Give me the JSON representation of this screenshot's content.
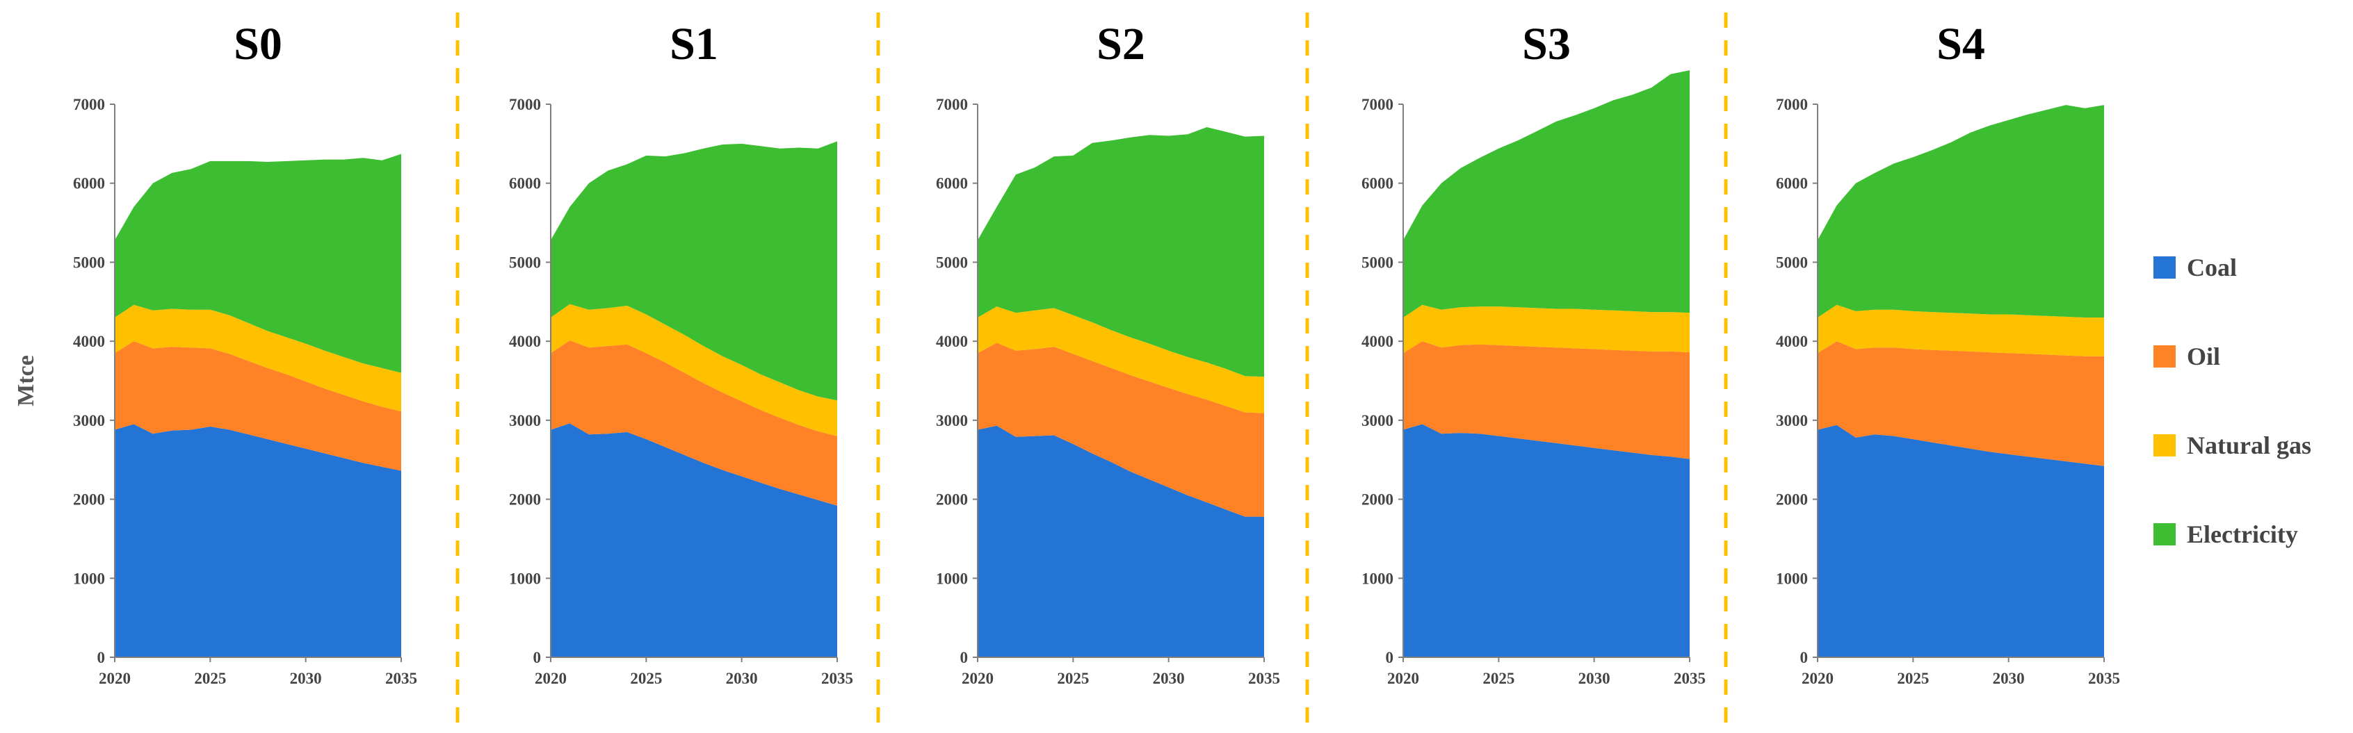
{
  "ylabel": "Mtce",
  "legend": [
    {
      "name": "Coal",
      "color": "#2374D4"
    },
    {
      "name": "Oil",
      "color": "#FF8227"
    },
    {
      "name": "Natural gas",
      "color": "#FFC000"
    },
    {
      "name": "Electricity",
      "color": "#3DBE32"
    }
  ],
  "chart_data": [
    {
      "type": "area",
      "stacked": true,
      "title": "S0",
      "x": [
        2020,
        2021,
        2022,
        2023,
        2024,
        2025,
        2026,
        2027,
        2028,
        2029,
        2030,
        2031,
        2032,
        2033,
        2034,
        2035
      ],
      "xticks": [
        2020,
        2025,
        2030,
        2035
      ],
      "yticks": [
        0,
        1000,
        2000,
        3000,
        4000,
        5000,
        6000,
        7000
      ],
      "ylim": [
        0,
        7000
      ],
      "xlim": [
        2020,
        2035
      ],
      "series": [
        {
          "name": "Coal",
          "values": [
            2880,
            2950,
            2830,
            2870,
            2880,
            2920,
            2880,
            2820,
            2760,
            2700,
            2640,
            2580,
            2520,
            2460,
            2410,
            2360
          ]
        },
        {
          "name": "Oil",
          "values": [
            970,
            1050,
            1080,
            1060,
            1040,
            990,
            960,
            930,
            900,
            880,
            850,
            820,
            800,
            780,
            760,
            750
          ]
        },
        {
          "name": "Natural gas",
          "values": [
            450,
            460,
            480,
            480,
            480,
            490,
            490,
            480,
            470,
            470,
            480,
            480,
            480,
            480,
            490,
            490
          ]
        },
        {
          "name": "Electricity",
          "values": [
            980,
            1240,
            1610,
            1720,
            1780,
            1880,
            1950,
            2050,
            2140,
            2230,
            2320,
            2420,
            2500,
            2600,
            2630,
            2770
          ]
        }
      ]
    },
    {
      "type": "area",
      "stacked": true,
      "title": "S1",
      "x": [
        2020,
        2021,
        2022,
        2023,
        2024,
        2025,
        2026,
        2027,
        2028,
        2029,
        2030,
        2031,
        2032,
        2033,
        2034,
        2035
      ],
      "xticks": [
        2020,
        2025,
        2030,
        2035
      ],
      "yticks": [
        0,
        1000,
        2000,
        3000,
        4000,
        5000,
        6000,
        7000
      ],
      "ylim": [
        0,
        7000
      ],
      "xlim": [
        2020,
        2035
      ],
      "series": [
        {
          "name": "Coal",
          "values": [
            2880,
            2960,
            2820,
            2830,
            2850,
            2760,
            2660,
            2560,
            2460,
            2370,
            2290,
            2210,
            2130,
            2060,
            1990,
            1920
          ]
        },
        {
          "name": "Oil",
          "values": [
            970,
            1050,
            1100,
            1110,
            1110,
            1090,
            1070,
            1040,
            1010,
            980,
            950,
            920,
            900,
            880,
            870,
            880
          ]
        },
        {
          "name": "Natural gas",
          "values": [
            450,
            460,
            480,
            480,
            490,
            490,
            480,
            480,
            470,
            460,
            460,
            450,
            450,
            440,
            440,
            450
          ]
        },
        {
          "name": "Electricity",
          "values": [
            980,
            1230,
            1600,
            1740,
            1790,
            2010,
            2130,
            2300,
            2500,
            2680,
            2800,
            2890,
            2960,
            3070,
            3140,
            3280
          ]
        }
      ]
    },
    {
      "type": "area",
      "stacked": true,
      "title": "S2",
      "x": [
        2020,
        2021,
        2022,
        2023,
        2024,
        2025,
        2026,
        2027,
        2028,
        2029,
        2030,
        2031,
        2032,
        2033,
        2034,
        2035
      ],
      "xticks": [
        2020,
        2025,
        2030,
        2035
      ],
      "yticks": [
        0,
        1000,
        2000,
        3000,
        4000,
        5000,
        6000,
        7000
      ],
      "ylim": [
        0,
        7000
      ],
      "xlim": [
        2020,
        2035
      ],
      "series": [
        {
          "name": "Coal",
          "values": [
            2880,
            2930,
            2790,
            2800,
            2810,
            2700,
            2580,
            2470,
            2350,
            2250,
            2150,
            2050,
            1960,
            1870,
            1780,
            1780
          ]
        },
        {
          "name": "Oil",
          "values": [
            970,
            1050,
            1090,
            1100,
            1120,
            1140,
            1170,
            1190,
            1220,
            1240,
            1260,
            1280,
            1300,
            1310,
            1320,
            1310
          ]
        },
        {
          "name": "Natural gas",
          "values": [
            450,
            460,
            480,
            490,
            490,
            490,
            490,
            480,
            480,
            480,
            470,
            470,
            470,
            470,
            460,
            460
          ]
        },
        {
          "name": "Electricity",
          "values": [
            980,
            1260,
            1750,
            1810,
            1920,
            2020,
            2270,
            2400,
            2530,
            2640,
            2720,
            2820,
            2980,
            3000,
            3030,
            3050
          ]
        }
      ]
    },
    {
      "type": "area",
      "stacked": true,
      "title": "S3",
      "x": [
        2020,
        2021,
        2022,
        2023,
        2024,
        2025,
        2026,
        2027,
        2028,
        2029,
        2030,
        2031,
        2032,
        2033,
        2034,
        2035
      ],
      "xticks": [
        2020,
        2025,
        2030,
        2035
      ],
      "yticks": [
        0,
        1000,
        2000,
        3000,
        4000,
        5000,
        6000,
        7000
      ],
      "ylim": [
        0,
        7000
      ],
      "xlim": [
        2020,
        2035
      ],
      "series": [
        {
          "name": "Coal",
          "values": [
            2880,
            2950,
            2830,
            2840,
            2830,
            2800,
            2770,
            2740,
            2710,
            2680,
            2650,
            2620,
            2590,
            2560,
            2540,
            2510
          ]
        },
        {
          "name": "Oil",
          "values": [
            970,
            1050,
            1090,
            1110,
            1130,
            1150,
            1170,
            1190,
            1210,
            1230,
            1250,
            1270,
            1290,
            1310,
            1330,
            1350
          ]
        },
        {
          "name": "Natural gas",
          "values": [
            450,
            460,
            480,
            480,
            480,
            490,
            490,
            490,
            490,
            500,
            500,
            500,
            500,
            500,
            500,
            500
          ]
        },
        {
          "name": "Electricity",
          "values": [
            980,
            1260,
            1600,
            1760,
            1880,
            2000,
            2110,
            2240,
            2370,
            2450,
            2550,
            2660,
            2740,
            2840,
            3010,
            3070
          ]
        }
      ]
    },
    {
      "type": "area",
      "stacked": true,
      "title": "S4",
      "x": [
        2020,
        2021,
        2022,
        2023,
        2024,
        2025,
        2026,
        2027,
        2028,
        2029,
        2030,
        2031,
        2032,
        2033,
        2034,
        2035
      ],
      "xticks": [
        2020,
        2025,
        2030,
        2035
      ],
      "yticks": [
        0,
        1000,
        2000,
        3000,
        4000,
        5000,
        6000,
        7000
      ],
      "ylim": [
        0,
        7000
      ],
      "xlim": [
        2020,
        2035
      ],
      "series": [
        {
          "name": "Coal",
          "values": [
            2880,
            2940,
            2780,
            2820,
            2800,
            2760,
            2720,
            2680,
            2640,
            2600,
            2570,
            2540,
            2510,
            2480,
            2450,
            2420
          ]
        },
        {
          "name": "Oil",
          "values": [
            970,
            1060,
            1120,
            1100,
            1120,
            1140,
            1170,
            1200,
            1230,
            1260,
            1280,
            1300,
            1320,
            1340,
            1360,
            1390
          ]
        },
        {
          "name": "Natural gas",
          "values": [
            450,
            460,
            480,
            480,
            480,
            480,
            480,
            480,
            480,
            480,
            490,
            490,
            490,
            490,
            490,
            490
          ]
        },
        {
          "name": "Electricity",
          "values": [
            980,
            1260,
            1620,
            1730,
            1850,
            1950,
            2050,
            2160,
            2290,
            2390,
            2460,
            2540,
            2610,
            2680,
            2650,
            2690
          ]
        }
      ]
    }
  ]
}
